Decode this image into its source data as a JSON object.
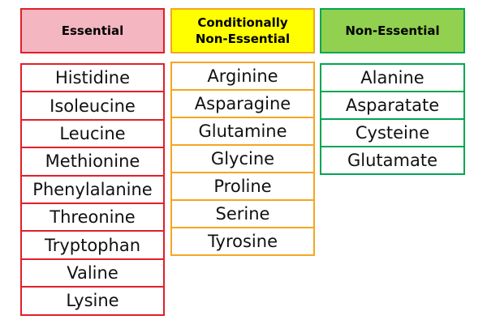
{
  "columns": [
    {
      "header": [
        "Essential"
      ],
      "items": [
        "Histidine",
        "Isoleucine",
        "Leucine",
        "Methionine",
        "Phenylalanine",
        "Threonine",
        "Tryptophan",
        "Valine",
        "Lysine"
      ]
    },
    {
      "header": [
        "Conditionally",
        "Non-Essential"
      ],
      "items": [
        "Arginine",
        "Asparagine",
        "Glutamine",
        "Glycine",
        "Proline",
        "Serine",
        "Tyrosine"
      ]
    },
    {
      "header": [
        "Non-Essential"
      ],
      "items": [
        "Alanine",
        "Asparatate",
        "Cysteine",
        "Glutamate"
      ]
    }
  ]
}
